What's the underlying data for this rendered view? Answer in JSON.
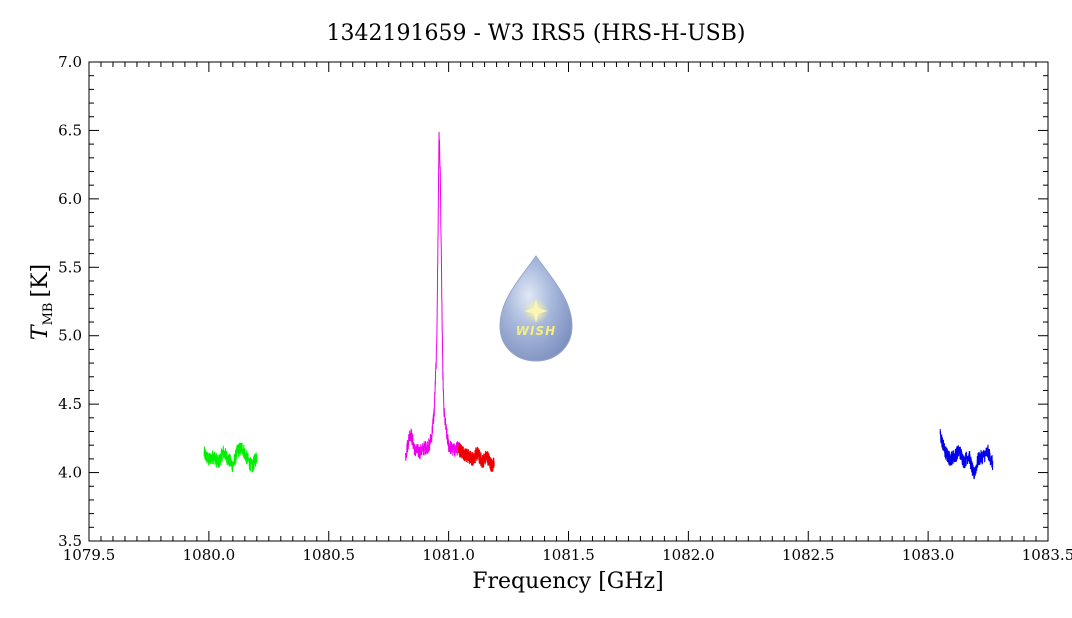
{
  "chart_data": {
    "type": "line",
    "title": "1342191659 - W3 IRS5 (HRS-H-USB)",
    "xlabel": "Frequency [GHz]",
    "ylabel": "T",
    "ylabel_subscript": "MB",
    "ylabel_unit": "[K]",
    "xlim": [
      1079.5,
      1083.5
    ],
    "ylim": [
      3.5,
      7.0
    ],
    "xticks": [
      "1079.5",
      "1080.0",
      "1080.5",
      "1081.0",
      "1081.5",
      "1082.0",
      "1082.5",
      "1083.0",
      "1083.5"
    ],
    "xtick_values": [
      1079.5,
      1080.0,
      1080.5,
      1081.0,
      1081.5,
      1082.0,
      1082.5,
      1083.0,
      1083.5
    ],
    "yticks": [
      "3.5",
      "4.0",
      "4.5",
      "5.0",
      "5.5",
      "6.0",
      "6.5",
      "7.0"
    ],
    "ytick_values": [
      3.5,
      4.0,
      4.5,
      5.0,
      5.5,
      6.0,
      6.5,
      7.0
    ],
    "grid": false,
    "series": [
      {
        "color": "#00ee00",
        "x": [
          1079.98,
          1080.0,
          1080.02,
          1080.04,
          1080.06,
          1080.08,
          1080.1,
          1080.12,
          1080.14,
          1080.16,
          1080.18,
          1080.2
        ],
        "y": [
          4.14,
          4.09,
          4.12,
          4.07,
          4.15,
          4.1,
          4.05,
          4.16,
          4.18,
          4.1,
          4.04,
          4.12
        ]
      },
      {
        "color": "#ee00ee",
        "x": [
          1080.82,
          1080.84,
          1080.86,
          1080.88,
          1080.9,
          1080.92,
          1080.93,
          1080.94,
          1080.95,
          1080.955,
          1080.96,
          1080.965,
          1080.97,
          1080.975,
          1080.98,
          1080.99,
          1081.0,
          1081.02,
          1081.04,
          1081.06
        ],
        "y": [
          4.12,
          4.3,
          4.16,
          4.15,
          4.18,
          4.2,
          4.28,
          4.45,
          4.9,
          5.6,
          6.5,
          6.2,
          5.5,
          4.8,
          4.45,
          4.3,
          4.2,
          4.16,
          4.18,
          4.15
        ]
      },
      {
        "color": "#ee0000",
        "x": [
          1081.04,
          1081.06,
          1081.08,
          1081.1,
          1081.12,
          1081.14,
          1081.16,
          1081.18,
          1081.19
        ],
        "y": [
          4.18,
          4.15,
          4.12,
          4.1,
          4.14,
          4.08,
          4.12,
          4.05,
          4.06
        ]
      },
      {
        "color": "#0000ee",
        "x": [
          1083.05,
          1083.07,
          1083.09,
          1083.11,
          1083.13,
          1083.15,
          1083.17,
          1083.19,
          1083.21,
          1083.23,
          1083.25,
          1083.27
        ],
        "y": [
          4.28,
          4.15,
          4.1,
          4.12,
          4.16,
          4.08,
          4.13,
          3.98,
          4.1,
          4.12,
          4.15,
          4.06
        ]
      }
    ]
  },
  "logo": {
    "text": "WISH",
    "icon": "water-drop-star-icon",
    "star_color": "#f5ee80",
    "drop_color": "#8ea4cf"
  }
}
